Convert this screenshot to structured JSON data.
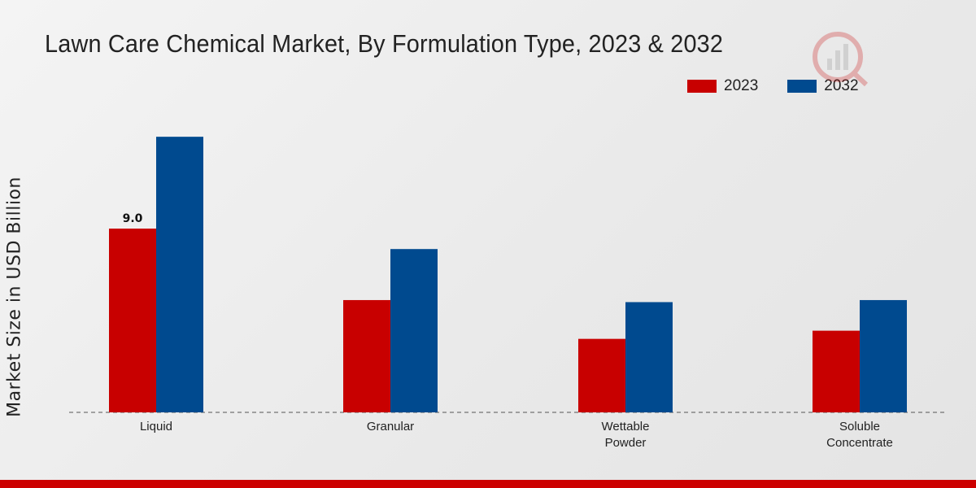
{
  "chart_data": {
    "type": "bar",
    "title": "Lawn Care Chemical Market, By Formulation Type, 2023 & 2032",
    "xlabel": "",
    "ylabel": "Market Size in USD Billion",
    "categories": [
      "Liquid",
      "Granular",
      "Wettable Powder",
      "Soluble Concentrate"
    ],
    "category_lines": [
      [
        "Liquid"
      ],
      [
        "Granular"
      ],
      [
        "Wettable",
        "Powder"
      ],
      [
        "Soluble",
        "Concentrate"
      ]
    ],
    "series": [
      {
        "name": "2023",
        "color": "#c80000",
        "values": [
          9.0,
          5.5,
          3.6,
          4.0
        ]
      },
      {
        "name": "2032",
        "color": "#004a8f",
        "values": [
          13.5,
          8.0,
          5.4,
          5.5
        ]
      }
    ],
    "data_labels": [
      {
        "series": 0,
        "index": 0,
        "text": "9.0"
      }
    ],
    "ylim": [
      0,
      20
    ],
    "grid": false,
    "legend": "top-right"
  }
}
